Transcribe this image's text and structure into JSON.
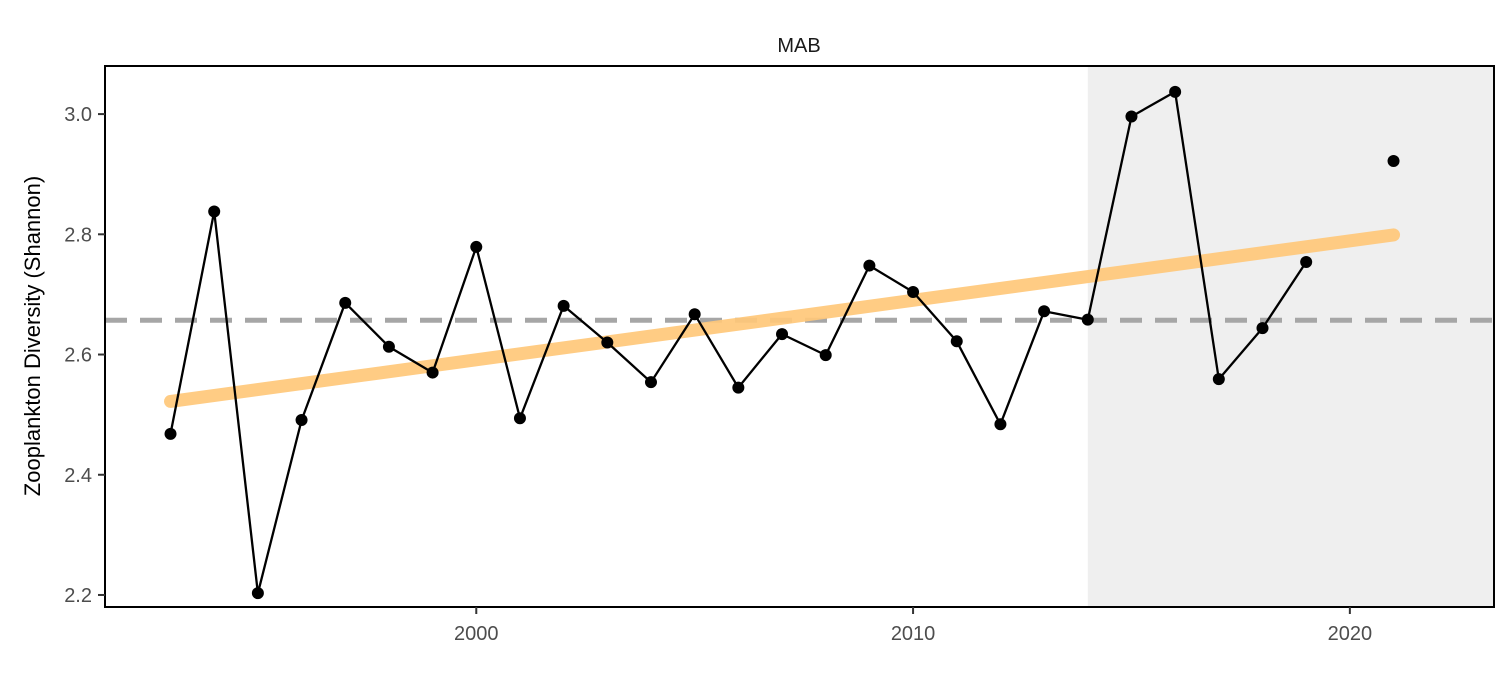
{
  "chart_data": {
    "type": "line",
    "title": "MAB",
    "xlabel": "",
    "ylabel": "Zooplankton Diversity (Shannon)",
    "xlim": [
      1991.5,
      2023.3
    ],
    "ylim": [
      2.18,
      3.08
    ],
    "x_ticks": [
      2000,
      2010,
      2020
    ],
    "x_tick_labels": [
      "2000",
      "2010",
      "2020"
    ],
    "y_ticks": [
      2.2,
      2.4,
      2.6,
      2.8,
      3.0
    ],
    "y_tick_labels": [
      "2.2",
      "2.4",
      "2.6",
      "2.8",
      "3.0"
    ],
    "grid": false,
    "shaded_region": {
      "x_start": 2014,
      "x_end": 2023.3,
      "color": "#efefef"
    },
    "mean_line": {
      "y": 2.657,
      "color": "#a6a6a6",
      "style": "dashed"
    },
    "trend_line": {
      "x": [
        1993,
        2021
      ],
      "y": [
        2.522,
        2.799
      ],
      "color": "#ffc879"
    },
    "series": [
      {
        "color": "#000000",
        "x": [
          1993,
          1994,
          1995,
          1996,
          1997,
          1998,
          1999,
          2000,
          2001,
          2002,
          2003,
          2004,
          2005,
          2006,
          2007,
          2008,
          2009,
          2010,
          2011,
          2012,
          2013,
          2014,
          2015,
          2016,
          2017,
          2018,
          2019
        ],
        "y": [
          2.468,
          2.838,
          2.203,
          2.491,
          2.686,
          2.613,
          2.57,
          2.779,
          2.494,
          2.681,
          2.62,
          2.554,
          2.667,
          2.545,
          2.634,
          2.599,
          2.748,
          2.704,
          2.622,
          2.484,
          2.672,
          2.658,
          2.996,
          3.037,
          2.559,
          2.644,
          2.754
        ]
      }
    ],
    "extra_points": {
      "x": [
        2021
      ],
      "y": [
        2.922
      ],
      "color": "#000000"
    }
  }
}
